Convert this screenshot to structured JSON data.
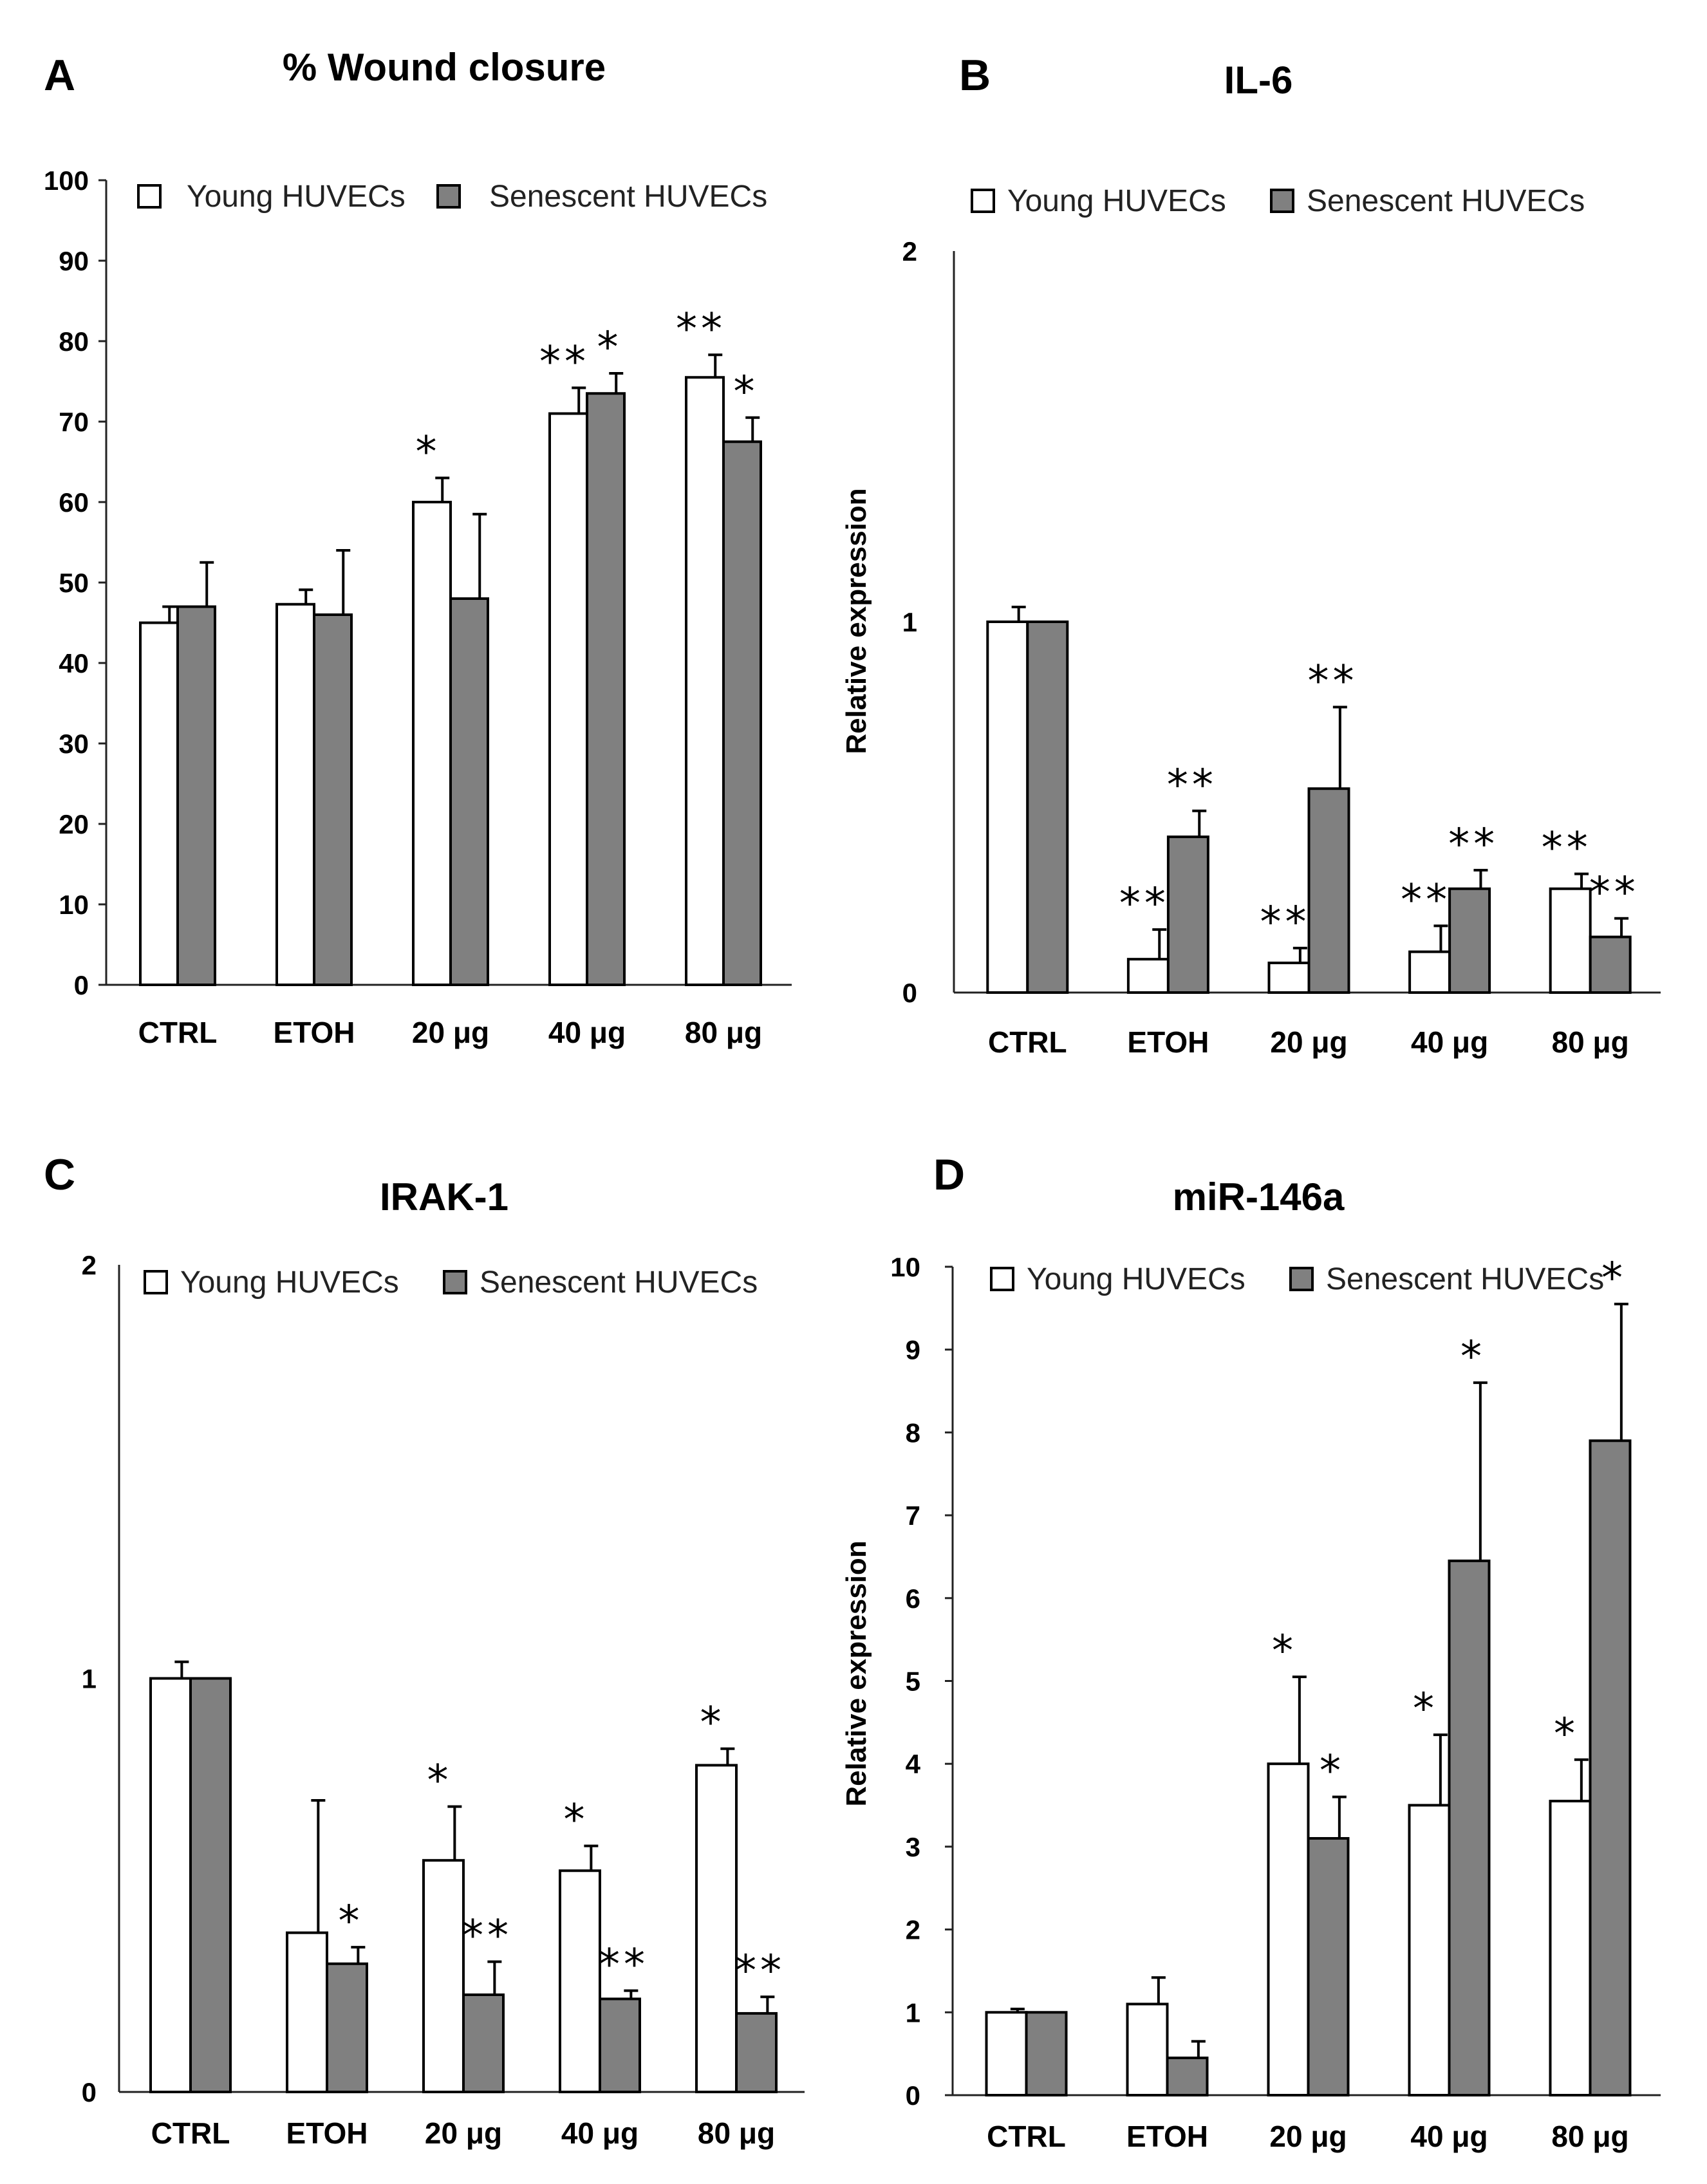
{
  "colors": {
    "young": "#ffffff",
    "senescent": "#808080",
    "outline": "#000000"
  },
  "chart_data": [
    {
      "type": "bar",
      "panel": "A",
      "title": "% Wound closure",
      "ylabel": "",
      "categories": [
        "CTRL",
        "ETOH",
        "20 μg",
        "40 μg",
        "80 μg"
      ],
      "ylim": [
        0,
        100
      ],
      "yticks": [
        0,
        10,
        20,
        30,
        40,
        50,
        60,
        70,
        80,
        90,
        100
      ],
      "legend": [
        "Young HUVECs",
        "Senescent HUVECs"
      ],
      "series": [
        {
          "name": "Young HUVECs",
          "values": [
            45,
            47.3,
            60,
            71,
            75.5
          ],
          "errors": [
            2,
            1.8,
            3,
            3.2,
            2.8
          ],
          "sig": [
            "",
            "",
            "*",
            "**",
            "**"
          ]
        },
        {
          "name": "Senescent HUVECs",
          "values": [
            47,
            46,
            48,
            73.5,
            67.5
          ],
          "errors": [
            5.5,
            8,
            10.5,
            2.5,
            3
          ],
          "sig": [
            "",
            "",
            "",
            "*",
            "*"
          ]
        }
      ]
    },
    {
      "type": "bar",
      "panel": "B",
      "title": "IL-6",
      "ylabel": "Relative expression",
      "categories": [
        "CTRL",
        "ETOH",
        "20  μg",
        "40  μg",
        "80  μg"
      ],
      "ylim": [
        0,
        2
      ],
      "yticks": [
        0,
        1,
        2
      ],
      "legend": [
        "Young HUVECs",
        "Senescent HUVECs"
      ],
      "series": [
        {
          "name": "Young HUVECs",
          "values": [
            1,
            0.09,
            0.08,
            0.11,
            0.28
          ],
          "errors": [
            0.04,
            0.08,
            0.04,
            0.07,
            0.04
          ],
          "sig": [
            "",
            "**",
            "**",
            "**",
            "**"
          ]
        },
        {
          "name": "Senescent HUVECs",
          "values": [
            1,
            0.42,
            0.55,
            0.28,
            0.15
          ],
          "errors": [
            0,
            0.07,
            0.22,
            0.05,
            0.05
          ],
          "sig": [
            "",
            "**",
            "**",
            "**",
            "**"
          ]
        }
      ]
    },
    {
      "type": "bar",
      "panel": "C",
      "title": "IRAK-1",
      "ylabel": "",
      "categories": [
        "CTRL",
        "ETOH",
        "20  μg",
        "40  μg",
        "80  μg"
      ],
      "ylim": [
        0,
        2
      ],
      "yticks": [
        0,
        1,
        2
      ],
      "legend": [
        "Young HUVECs",
        "Senescent HUVECs"
      ],
      "series": [
        {
          "name": "Young HUVECs",
          "values": [
            1,
            0.385,
            0.56,
            0.535,
            0.79
          ],
          "errors": [
            0.04,
            0.32,
            0.13,
            0.06,
            0.04
          ],
          "sig": [
            "",
            "",
            "*",
            "*",
            "*"
          ]
        },
        {
          "name": "Senescent HUVECs",
          "values": [
            1,
            0.31,
            0.235,
            0.225,
            0.19
          ],
          "errors": [
            0,
            0.04,
            0.08,
            0.02,
            0.04
          ],
          "sig": [
            "",
            "*",
            "**",
            "**",
            "**"
          ]
        }
      ]
    },
    {
      "type": "bar",
      "panel": "D",
      "title": "miR-146a",
      "ylabel": "Relative expression",
      "categories": [
        "CTRL",
        "ETOH",
        "20 μg",
        "40 μg",
        "80 μg"
      ],
      "ylim": [
        0,
        10
      ],
      "yticks": [
        0,
        1,
        2,
        3,
        4,
        5,
        6,
        7,
        8,
        9,
        10
      ],
      "legend": [
        "Young HUVECs",
        "Senescent HUVECs"
      ],
      "series": [
        {
          "name": "Young HUVECs",
          "values": [
            1,
            1.1,
            4,
            3.5,
            3.55
          ],
          "errors": [
            0.04,
            0.32,
            1.05,
            0.85,
            0.5
          ],
          "sig": [
            "",
            "",
            "*",
            "*",
            "*"
          ]
        },
        {
          "name": "Senescent HUVECs",
          "values": [
            1,
            0.45,
            3.1,
            6.45,
            7.9
          ],
          "errors": [
            0,
            0.2,
            0.5,
            2.15,
            1.65
          ],
          "sig": [
            "",
            "",
            "*",
            "*",
            "*"
          ]
        }
      ]
    }
  ]
}
